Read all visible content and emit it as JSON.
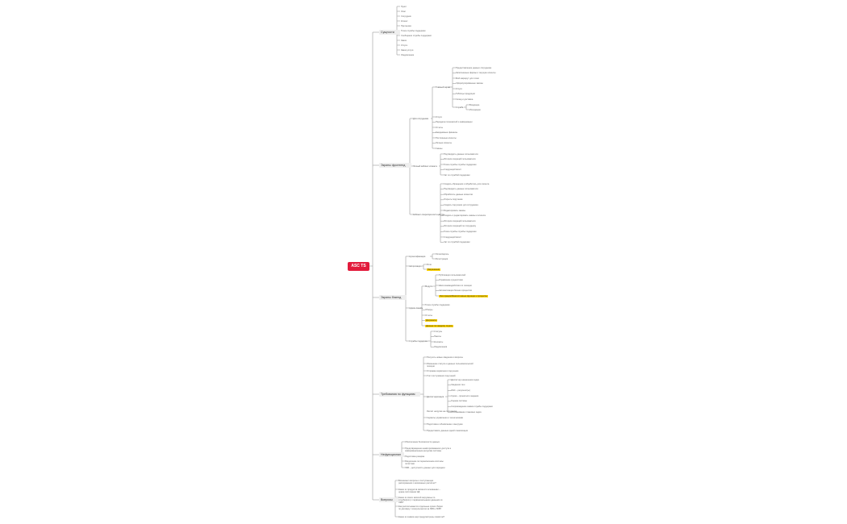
{
  "root": {
    "label": "ASC TS"
  },
  "colors": {
    "root": "#e21b3c",
    "highlight": "#ffd400",
    "line": "#9a9a9a",
    "branch_bg": "#eeeeee"
  },
  "branches": [
    {
      "label": "Сущности",
      "children": [
        "Пункт",
        "Этап",
        "Сотрудник",
        "Клиент",
        "Претензия",
        "Точка службы поддержки",
        "Сообщение службы поддержки",
        "Заказ",
        "Услуга",
        "Заказ услуги",
        "Уведомление"
      ]
    },
    {
      "label": "Экраны фронтенд",
      "groups": [
        {
          "label": "Для сотрудника",
          "subgroup": {
            "label": "Главный экран",
            "items": [
              "Предоставление данных сотрудника",
              "Заполненные формы и текущие клиенты",
              "Мой маршрут для точки",
              "Сформулированные заказы",
              "Услуги",
              "Таблицы продукции",
              "Склад и доставка"
            ],
            "deep": {
              "label": "Служба",
              "items": [
                "Входящие",
                "Исходящие"
              ]
            }
          },
          "items": [
            "Услуги",
            "Передача полномочий и информации",
            "Отчеты",
            "Ежедневные финансы",
            "Постоянные клиенты",
            "Личные клиенты",
            "Смены"
          ]
        },
        {
          "label": "Личный кабинет клиента",
          "items": [
            "Подтвердить данные пользователя",
            "История операций пользователя",
            "Точка службы службы поддержки",
            "Следующий визит",
            "Чат со службой поддержки"
          ]
        },
        {
          "label": "Кабинет оператора колл-центра",
          "items": [
            "Создать обращения и обработать для клиента",
            "Подтвердить данные пользователя",
            "Обработать данные клиентов",
            "Открыть поручение",
            "Создать поручение для сотрудника",
            "Редактировать заказы",
            "Создать и редактировать заказы и клиента",
            "История операций пользователя",
            "История операций по сотруднику",
            "Точка службы службы поддержки",
            "Следующий визит",
            "Чат со службой поддержки"
          ]
        }
      ]
    },
    {
      "label": "Экраны бэкенд",
      "groups": [
        {
          "label": "Аутентификация",
          "items": [
            "Логин/пароль",
            "Регистрация"
          ]
        },
        {
          "label": "Авторизация",
          "items": [
            "Роли",
            "Разрешения"
          ],
          "highlight": [
            1
          ]
        },
        {
          "label": "Админ-панель",
          "subgroup": {
            "label": "Модули",
            "items": [
              "Публикация пользователей",
              "Управление сущностями",
              "Шаги взаимодействия по позиции",
              "Автоматизация бизнес-процессов",
              "Интеграция/Межсистемные функции и процессы"
            ],
            "highlight": [
              4
            ]
          },
          "items": [
            "Точка службы поддержки",
            "Обзоры",
            "Отчеты",
            "Документы",
            "Данные по каждому отделу"
          ],
          "highlight": [
            3,
            4
          ]
        },
        {
          "label": "Службы поддержки",
          "items": [
            "Статусы",
            "Пакеты",
            "Контакты",
            "Уведомления"
          ]
        }
      ]
    },
    {
      "label": "Требования по функциям",
      "items": [
        "Получить новые сведения и вопросы",
        "Изменение статуса и данных пользовательской позиции",
        "Отправка первичного поручения",
        "Учёт поступивших поручений",
        "Расчёт нагрузки на сотрудника"
      ],
      "subgroup": {
        "label": "Диспетчеризация",
        "items": [
          "Диспетчер назначения задач",
          "Сведения тиш",
          "ИНС – результат(ы)",
          "Сроки – проектного задания",
          "Оценка системы",
          "Сопровождение заявок службы поддержки",
          "Отслеживание плановых задач"
        ]
      },
      "tail": [
        "Сервисы управления и техническими",
        "Подготовка к обновлению и выгрузке",
        "Предоставить данные одной локализации"
      ]
    },
    {
      "label": "Нефункционал",
      "items": [
        "Обеспечение безопасности данных",
        "Предотвращение неавторизованного доступа к информационным ресурсам системы",
        "Подготовка резерва",
        "Разделение по переключению системы логистики",
        "ЛКВ – доступность данных для передачи"
      ]
    },
    {
      "label": "Вопросы",
      "items": [
        "Возникают вопросы и поступающие распоряжения о возможных расчётах?",
        "Какие из продуктов являются основными – нужна постоянная ЭД",
        "Какие из своих записей загружены по службе(иях) с первоначальными данными из ЛКВ?",
        "Как рассчитываются отдельные сроки сборки по договору с консультантом за ЛКВ и ЛКВ?",
        "Какие из заявок ещё предусмотрены лимитом?"
      ]
    }
  ]
}
